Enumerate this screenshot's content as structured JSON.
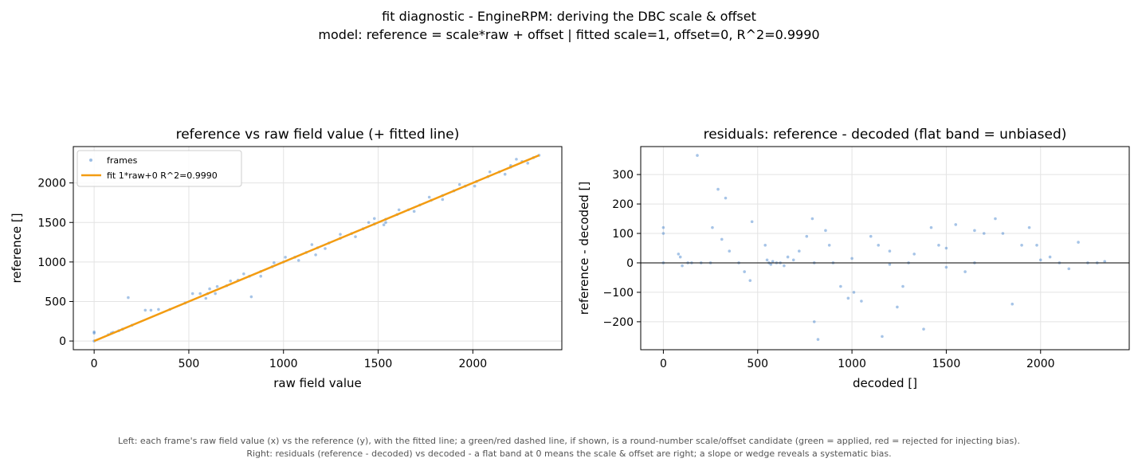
{
  "suptitle": {
    "line1": "fit diagnostic - EngineRPM: deriving the DBC scale & offset",
    "line2": "model: reference = scale*raw + offset    |    fitted scale=1, offset=0, R^2=0.9990"
  },
  "footer": {
    "line1": "Left: each frame's raw field value (x) vs the reference (y), with the fitted line; a green/red dashed line, if shown, is a round-number scale/offset candidate (green = applied, red = rejected for injecting bias).",
    "line2": "Right: residuals (reference - decoded) vs decoded - a flat band at 0 means the scale & offset are right; a slope or wedge reveals a systematic bias."
  },
  "colors": {
    "points": "#3a7dc9",
    "fit_line": "#f39c12",
    "zero_line": "#333333",
    "grid": "#e3e3e3"
  },
  "chart_data": [
    {
      "type": "scatter",
      "title": "reference vs raw field value (+ fitted line)",
      "xlabel": "raw field value",
      "ylabel": "reference []",
      "xlim": [
        -110,
        2470
      ],
      "ylim": [
        -110,
        2460
      ],
      "xticks": [
        0,
        500,
        1000,
        1500,
        2000
      ],
      "yticks": [
        0,
        500,
        1000,
        1500,
        2000
      ],
      "grid": true,
      "legend_position": "top-left",
      "series": [
        {
          "name": "frames",
          "kind": "points",
          "x": [
            0,
            0,
            0,
            75,
            90,
            100,
            130,
            150,
            180,
            200,
            270,
            300,
            340,
            400,
            480,
            520,
            560,
            600,
            640,
            700,
            760,
            820,
            880,
            940,
            1000,
            1060,
            1120,
            1180,
            1240,
            1300,
            1360,
            1420,
            1480,
            1540,
            1600,
            1660,
            1720,
            1780,
            1840,
            1900,
            1960,
            2020,
            2080,
            2140,
            2200,
            2260,
            2320,
            2350,
            590,
            610,
            650,
            720,
            790,
            880,
            950,
            1010,
            1080,
            1150,
            1220,
            1300,
            1380,
            1450,
            1530,
            1610,
            1690,
            1770,
            1840,
            1930,
            2010,
            2090,
            2170,
            2230,
            2290,
            830,
            1170,
            1480,
            2200,
            1540
          ],
          "y": [
            0,
            100,
            115,
            80,
            100,
            110,
            130,
            150,
            550,
            200,
            390,
            390,
            400,
            400,
            480,
            600,
            600,
            600,
            600,
            700,
            770,
            820,
            880,
            940,
            1000,
            1060,
            1120,
            1180,
            1240,
            1300,
            1360,
            1420,
            1480,
            1540,
            1600,
            1660,
            1720,
            1780,
            1840,
            1900,
            1960,
            2020,
            2080,
            2140,
            2200,
            2270,
            2320,
            2350,
            540,
            660,
            690,
            760,
            850,
            820,
            990,
            1060,
            1020,
            1220,
            1170,
            1350,
            1320,
            1500,
            1470,
            1660,
            1640,
            1820,
            1790,
            1980,
            1960,
            2140,
            2110,
            2300,
            2250,
            560,
            1090,
            1550,
            2220,
            1500
          ]
        },
        {
          "name": "fit 1*raw+0  R^2=0.9990",
          "kind": "line",
          "x": [
            0,
            2350
          ],
          "y": [
            0,
            2350
          ]
        }
      ]
    },
    {
      "type": "scatter",
      "title": "residuals: reference - decoded (flat band = unbiased)",
      "xlabel": "decoded []",
      "ylabel": "reference - decoded []",
      "xlim": [
        -120,
        2470
      ],
      "ylim": [
        -295,
        395
      ],
      "xticks": [
        0,
        500,
        1000,
        1500,
        2000
      ],
      "yticks": [
        -200,
        -100,
        0,
        100,
        200,
        300
      ],
      "grid": true,
      "reference_line_y": 0,
      "series": [
        {
          "name": "residuals",
          "kind": "points",
          "x": [
            0,
            0,
            0,
            80,
            90,
            100,
            130,
            150,
            180,
            200,
            250,
            260,
            290,
            310,
            330,
            350,
            400,
            430,
            460,
            470,
            540,
            550,
            560,
            570,
            580,
            600,
            620,
            640,
            660,
            690,
            720,
            760,
            790,
            800,
            820,
            860,
            880,
            900,
            940,
            980,
            1010,
            1050,
            1100,
            1140,
            1160,
            1200,
            1240,
            1270,
            1300,
            1330,
            1380,
            1420,
            1460,
            1500,
            1550,
            1600,
            1650,
            1700,
            1760,
            1800,
            1850,
            1900,
            1940,
            1980,
            2050,
            2100,
            2150,
            2200,
            2250,
            2300,
            2340,
            1000,
            1500,
            2000,
            1200,
            800,
            1650
          ],
          "y": [
            100,
            120,
            0,
            30,
            20,
            -10,
            0,
            0,
            365,
            0,
            0,
            120,
            250,
            80,
            220,
            40,
            0,
            -30,
            -60,
            140,
            60,
            10,
            0,
            -5,
            5,
            0,
            0,
            -10,
            20,
            10,
            40,
            90,
            150,
            -200,
            -260,
            110,
            60,
            0,
            -80,
            -120,
            -100,
            -130,
            90,
            60,
            -250,
            40,
            -150,
            -80,
            0,
            30,
            -225,
            120,
            60,
            50,
            130,
            -30,
            110,
            100,
            150,
            100,
            -140,
            60,
            120,
            60,
            20,
            0,
            -20,
            70,
            0,
            0,
            5,
            15,
            -15,
            10,
            -5,
            0,
            0
          ]
        }
      ]
    }
  ]
}
